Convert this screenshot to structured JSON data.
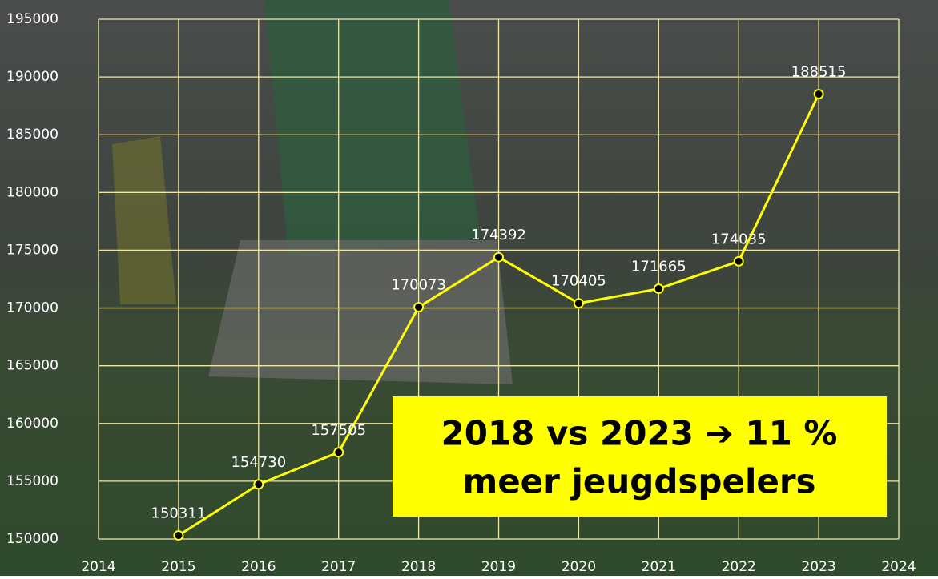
{
  "chart_data": {
    "type": "line",
    "x": [
      2015,
      2016,
      2017,
      2018,
      2019,
      2020,
      2021,
      2022,
      2023
    ],
    "series": [
      {
        "name": "jeugdspelers",
        "color": "#ffff00",
        "values": [
          150311,
          154730,
          157505,
          170073,
          174392,
          170405,
          171665,
          174035,
          188515
        ]
      }
    ],
    "xlim": [
      2014,
      2024
    ],
    "xticks": [
      2014,
      2015,
      2016,
      2017,
      2018,
      2019,
      2020,
      2021,
      2022,
      2023,
      2024
    ],
    "ylim": [
      150000,
      195000
    ],
    "yticks": [
      150000,
      155000,
      160000,
      165000,
      170000,
      175000,
      180000,
      185000,
      190000,
      195000
    ],
    "grid": true,
    "annotation": [
      "2018 vs 2023 ➔ 11 %",
      "meer jeugdspelers"
    ]
  }
}
